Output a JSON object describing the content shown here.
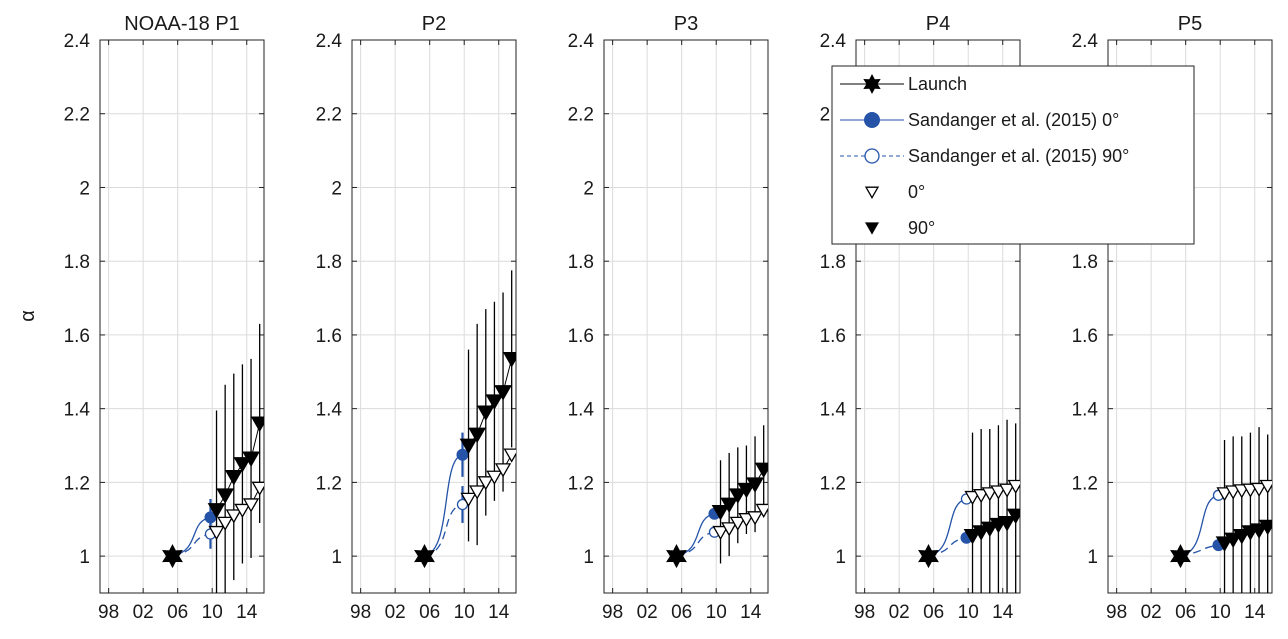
{
  "chart_data": {
    "type": "line",
    "ylabel": "α",
    "xtick_labels": [
      "98",
      "02",
      "06",
      "10",
      "14"
    ],
    "xtick_values": [
      1998,
      2002,
      2006,
      2010,
      2014
    ],
    "xlim": [
      1997,
      2016
    ],
    "ylim": [
      0.9,
      2.4
    ],
    "yticks": [
      1,
      1.2,
      1.4,
      1.6,
      1.8,
      2,
      2.2,
      2.4
    ],
    "ytick_labels": [
      "1",
      "1.2",
      "1.4",
      "1.6",
      "1.8",
      "2",
      "2.2",
      "2.4"
    ],
    "grid": true,
    "legend": {
      "panel": 3,
      "position": "top-left",
      "entries": [
        {
          "label": "Launch",
          "marker": "hexagram"
        },
        {
          "label": "Sandanger et al. (2015) 0°",
          "marker": "filled-circle"
        },
        {
          "label": "Sandanger et al. (2015) 90°",
          "marker": "open-circle"
        },
        {
          "label": "0°",
          "marker": "open-triangle-down"
        },
        {
          "label": "90°",
          "marker": "filled-triangle-down"
        }
      ]
    },
    "colors": {
      "sandanger": "#2453a8",
      "black": "#000000",
      "grid": "#dcdcdc"
    },
    "panels": [
      {
        "title": "NOAA-18 P1",
        "launch": {
          "x": 2005.4,
          "y": 1.0
        },
        "sandanger0": {
          "x": 2009.8,
          "y": 1.105,
          "err": 0.05
        },
        "sandanger90": {
          "x": 2009.8,
          "y": 1.06,
          "err": 0.04
        },
        "x": [
          2010.5,
          2011.5,
          2012.5,
          2013.5,
          2014.5,
          2015.5
        ],
        "open0": [
          1.065,
          1.09,
          1.11,
          1.125,
          1.14,
          1.185
        ],
        "filled90": [
          1.125,
          1.165,
          1.215,
          1.25,
          1.265,
          1.36
        ],
        "err90": [
          0.27,
          0.3,
          0.28,
          0.27,
          0.27,
          0.27
        ]
      },
      {
        "title": "P2",
        "launch": {
          "x": 2005.4,
          "y": 1.0
        },
        "sandanger0": {
          "x": 2009.8,
          "y": 1.275,
          "err": 0.06
        },
        "sandanger90": {
          "x": 2009.8,
          "y": 1.14,
          "err": 0.05
        },
        "x": [
          2010.5,
          2011.5,
          2012.5,
          2013.5,
          2014.5,
          2015.5
        ],
        "open0": [
          1.155,
          1.175,
          1.2,
          1.215,
          1.235,
          1.275
        ],
        "filled90": [
          1.3,
          1.33,
          1.39,
          1.42,
          1.445,
          1.535
        ],
        "err90": [
          0.26,
          0.3,
          0.28,
          0.27,
          0.27,
          0.24
        ]
      },
      {
        "title": "P3",
        "launch": {
          "x": 2005.4,
          "y": 1.0
        },
        "sandanger0": {
          "x": 2009.8,
          "y": 1.115,
          "err": 0.0
        },
        "sandanger90": {
          "x": 2009.8,
          "y": 1.065,
          "err": 0.0
        },
        "x": [
          2010.5,
          2011.5,
          2012.5,
          2013.5,
          2014.5,
          2015.5
        ],
        "open0": [
          1.065,
          1.075,
          1.09,
          1.1,
          1.105,
          1.125
        ],
        "filled90": [
          1.12,
          1.14,
          1.165,
          1.18,
          1.195,
          1.235
        ],
        "err90": [
          0.14,
          0.14,
          0.13,
          0.12,
          0.13,
          0.12
        ]
      },
      {
        "title": "P4",
        "launch": {
          "x": 2005.4,
          "y": 1.0
        },
        "sandanger0": {
          "x": 2009.8,
          "y": 1.05,
          "err": 0.0
        },
        "sandanger90": {
          "x": 2009.8,
          "y": 1.155,
          "err": 0.0
        },
        "x": [
          2010.5,
          2011.5,
          2012.5,
          2013.5,
          2014.5,
          2015.5
        ],
        "open0": [
          1.16,
          1.165,
          1.17,
          1.175,
          1.18,
          1.19
        ],
        "filled90": [
          1.055,
          1.065,
          1.075,
          1.085,
          1.09,
          1.11
        ],
        "err90": [
          0.28,
          0.28,
          0.27,
          0.27,
          0.28,
          0.25
        ]
      },
      {
        "title": "P5",
        "launch": {
          "x": 2005.4,
          "y": 1.0
        },
        "sandanger0": {
          "x": 2009.8,
          "y": 1.03,
          "err": 0.0
        },
        "sandanger90": {
          "x": 2009.8,
          "y": 1.165,
          "err": 0.0
        },
        "x": [
          2010.5,
          2011.5,
          2012.5,
          2013.5,
          2014.5,
          2015.5
        ],
        "open0": [
          1.17,
          1.175,
          1.178,
          1.18,
          1.182,
          1.19
        ],
        "filled90": [
          1.035,
          1.045,
          1.055,
          1.065,
          1.07,
          1.08
        ],
        "err90": [
          0.28,
          0.28,
          0.27,
          0.27,
          0.28,
          0.25
        ]
      }
    ]
  }
}
